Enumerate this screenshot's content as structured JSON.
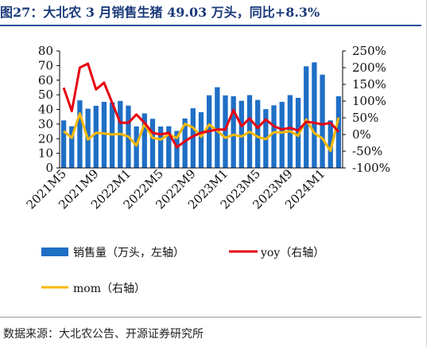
{
  "title": "图27：大北农 3 月销售生猪 49.03 万头，同比+8.3%",
  "source": "数据来源：大北农公告、开源证券研究所",
  "colors": {
    "bar": "#1f6fc5",
    "yoy": "#e60012",
    "mom": "#f5b800",
    "title": "#1a3a7a"
  },
  "chart_data": {
    "type": "bar",
    "categories": [
      "2021M5",
      "2021M6",
      "2021M7",
      "2021M8",
      "2021M9",
      "2021M10",
      "2021M11",
      "2021M12",
      "2022M1",
      "2022M2",
      "2022M3",
      "2022M4",
      "2022M5",
      "2022M6",
      "2022M7",
      "2022M8",
      "2022M9",
      "2022M10",
      "2022M11",
      "2022M12",
      "2023M1",
      "2023M2",
      "2023M3",
      "2023M4",
      "2023M5",
      "2023M6",
      "2023M7",
      "2023M8",
      "2023M9",
      "2023M10",
      "2023M11",
      "2023M12",
      "2024M1",
      "2024M2",
      "2024M3"
    ],
    "tick_labels": [
      "2021M5",
      "2021M9",
      "2022M1",
      "2022M5",
      "2022M9",
      "2023M1",
      "2023M5",
      "2023M9",
      "2024M1"
    ],
    "tick_step": 4,
    "left_axis": {
      "min": 0,
      "max": 80,
      "step": 10,
      "labels": [
        "0",
        "10",
        "20",
        "30",
        "40",
        "50",
        "60",
        "70",
        "80"
      ]
    },
    "right_axis": {
      "min": -100,
      "max": 250,
      "step": 50,
      "labels": [
        "-100%",
        "-50%",
        "0%",
        "50%",
        "100%",
        "150%",
        "200%",
        "250%"
      ]
    },
    "series": [
      {
        "name": "销售量（万头，左轴）",
        "axis": "left",
        "kind": "bar",
        "values": [
          32.5,
          28.5,
          46.2,
          40.5,
          42.5,
          45.2,
          44.8,
          45.8,
          42.6,
          28.4,
          37.3,
          33.6,
          28.3,
          28.5,
          25.3,
          33.8,
          40.8,
          38.1,
          49.7,
          55.2,
          49.6,
          49.0,
          45.9,
          49.8,
          46.5,
          40.2,
          42.8,
          45.2,
          49.8,
          47.9,
          69.5,
          72.2,
          63.8,
          32.5,
          49.03
        ]
      },
      {
        "name": "yoy（右轴）",
        "axis": "right",
        "kind": "line",
        "values": [
          140,
          70,
          200,
          212,
          135,
          155,
          95,
          35,
          35,
          60,
          35,
          5,
          0,
          5,
          -38,
          -20,
          -5,
          5,
          10,
          15,
          15,
          73,
          25,
          48,
          20,
          45,
          25,
          15,
          20,
          12,
          38,
          35,
          30,
          35,
          8.3
        ]
      },
      {
        "name": "mom（右轴）",
        "axis": "right",
        "kind": "line",
        "values": [
          10,
          -10,
          63,
          -15,
          5,
          3,
          0,
          2,
          -6,
          -33,
          32,
          -10,
          -15,
          0,
          -10,
          32,
          21,
          -7,
          30,
          11,
          -10,
          -1,
          -6,
          8,
          -7,
          -14,
          7,
          6,
          10,
          -4,
          45,
          4,
          -12,
          -49,
          51
        ]
      }
    ],
    "legend_position": "bottom",
    "grid": false
  }
}
